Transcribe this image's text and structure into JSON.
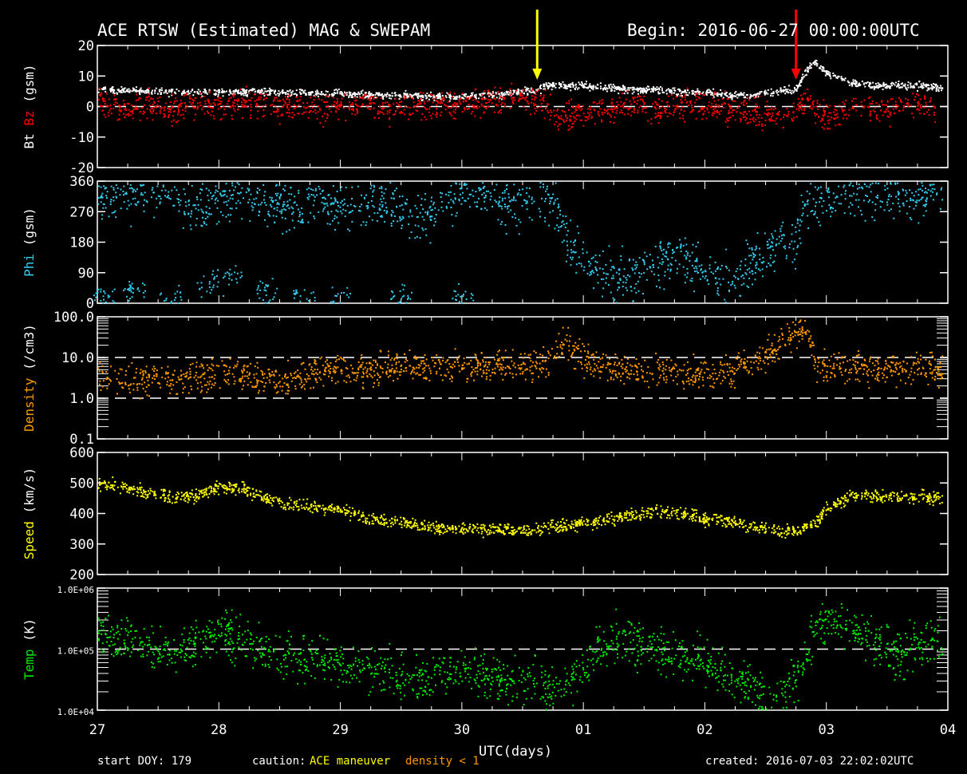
{
  "header": {
    "title": "ACE RTSW (Estimated) MAG & SWEPAM",
    "begin": "Begin: 2016-06-27 00:00:00UTC"
  },
  "footer": {
    "start_doy": "start DOY: 179",
    "caution_label": "caution:",
    "caution_maneuver": "ACE maneuver",
    "caution_density": "density < 1",
    "created": "created: 2016-07-03 22:02:02UTC"
  },
  "colors": {
    "bt": "#ffffff",
    "bz": "#ff0000",
    "phi": "#33ccee",
    "density": "#ff9900",
    "speed": "#ffff00",
    "temp": "#00ee00",
    "arrow_yellow": "#ffff00",
    "arrow_red": "#ff0000"
  },
  "chart_data": {
    "type": "scatter",
    "x_axis": {
      "ticks": [
        "27",
        "28",
        "29",
        "30",
        "01",
        "02",
        "03",
        "04"
      ],
      "label": "UTC(days)",
      "range_days": [
        0,
        7
      ]
    },
    "annotations": [
      {
        "type": "arrow",
        "color": "yellow",
        "x_day": 3.62
      },
      {
        "type": "arrow",
        "color": "red",
        "x_day": 5.75
      }
    ],
    "panels": [
      {
        "id": "mag",
        "ylabel_parts": [
          {
            "text": "Bt",
            "color": "#ffffff"
          },
          {
            "text": "Bz",
            "color": "#ff0000"
          },
          {
            "text": "(gsm)",
            "color": "#ffffff"
          }
        ],
        "ylim": [
          -20,
          20
        ],
        "ticks": [
          -20,
          -10,
          0,
          10,
          20
        ],
        "tick_labels": [
          "-20",
          "-10",
          "0",
          "10",
          "20"
        ],
        "dashed": [
          0
        ],
        "series": [
          {
            "name": "Bt",
            "color": "#ffffff",
            "x": [
              0,
              0.25,
              0.5,
              0.75,
              1.0,
              1.25,
              1.5,
              1.75,
              2.0,
              2.25,
              2.5,
              2.75,
              3.0,
              3.25,
              3.5,
              3.62,
              3.75,
              3.9,
              4.0,
              4.2,
              4.4,
              4.6,
              4.8,
              5.0,
              5.2,
              5.4,
              5.6,
              5.75,
              5.85,
              5.9,
              6.0,
              6.2,
              6.4,
              6.6,
              6.8,
              6.95
            ],
            "y": [
              6,
              5.5,
              5,
              5,
              5,
              5,
              5,
              4.5,
              4.5,
              4,
              4,
              3.5,
              3.5,
              4,
              5,
              6,
              7.5,
              7,
              7,
              6,
              6,
              5.5,
              5,
              5,
              4,
              4,
              5,
              6,
              13,
              15,
              11,
              8,
              7,
              7,
              7,
              6
            ]
          },
          {
            "name": "Bz",
            "color": "#ff0000",
            "x": [
              0,
              0.2,
              0.4,
              0.6,
              0.8,
              1.0,
              1.2,
              1.4,
              1.6,
              1.8,
              2.0,
              2.2,
              2.4,
              2.6,
              2.8,
              3.0,
              3.2,
              3.4,
              3.6,
              3.7,
              3.8,
              4.0,
              4.2,
              4.4,
              4.6,
              4.8,
              5.0,
              5.2,
              5.4,
              5.6,
              5.75,
              5.85,
              5.95,
              6.1,
              6.3,
              6.5,
              6.7,
              6.9
            ],
            "y": [
              2,
              -1,
              1,
              -1,
              1,
              0,
              2,
              -1,
              1,
              -1,
              0,
              1,
              -1,
              1,
              0,
              1,
              2,
              3,
              3,
              0,
              -4,
              -2,
              -1,
              1,
              -1,
              0,
              1,
              -1,
              -2,
              -3,
              -1,
              3,
              -3,
              -2,
              0,
              -1,
              1,
              -1
            ]
          }
        ]
      },
      {
        "id": "phi",
        "ylabel_parts": [
          {
            "text": "Phi",
            "color": "#33ccee"
          },
          {
            "text": "(gsm)",
            "color": "#ffffff"
          }
        ],
        "ylim": [
          0,
          360
        ],
        "ticks": [
          0,
          90,
          180,
          270,
          360
        ],
        "tick_labels": [
          "0",
          "90",
          "180",
          "270",
          "360"
        ],
        "dashed": [],
        "series": [
          {
            "name": "Phi",
            "color": "#33ccee",
            "x": [
              0,
              0.2,
              0.4,
              0.6,
              0.8,
              1.0,
              1.2,
              1.4,
              1.6,
              1.8,
              2.0,
              2.2,
              2.4,
              2.6,
              2.8,
              3.0,
              3.2,
              3.4,
              3.6,
              3.75,
              3.85,
              4.0,
              4.2,
              4.4,
              4.6,
              4.8,
              5.0,
              5.2,
              5.4,
              5.6,
              5.75,
              5.85,
              6.0,
              6.2,
              6.4,
              6.6,
              6.8,
              6.95
            ],
            "y": [
              330,
              300,
              340,
              320,
              280,
              310,
              330,
              300,
              290,
              320,
              270,
              290,
              300,
              250,
              280,
              350,
              320,
              280,
              340,
              300,
              200,
              120,
              90,
              60,
              120,
              150,
              100,
              60,
              130,
              180,
              200,
              300,
              310,
              330,
              320,
              300,
              340,
              310
            ]
          },
          {
            "name": "Phi-low",
            "color": "#33ccee",
            "x": [
              0.05,
              0.3,
              0.6,
              0.9,
              1.1,
              1.4,
              1.7,
              2.0,
              2.5,
              3.0
            ],
            "y": [
              20,
              40,
              10,
              60,
              80,
              30,
              20,
              10,
              15,
              20
            ]
          }
        ]
      },
      {
        "id": "density",
        "ylabel_parts": [
          {
            "text": "Density",
            "color": "#ff9900"
          },
          {
            "text": "(/cm3)",
            "color": "#ffffff"
          }
        ],
        "ylim": [
          0.1,
          100
        ],
        "log": true,
        "ticks": [
          0.1,
          1,
          10,
          100
        ],
        "tick_labels": [
          "0.1",
          "1.0",
          "10.0",
          "100.0"
        ],
        "dashed": [
          1,
          10
        ],
        "series": [
          {
            "name": "Density",
            "color": "#ff9900",
            "x": [
              0,
              0.25,
              0.5,
              0.75,
              1.0,
              1.25,
              1.5,
              1.75,
              2.0,
              2.25,
              2.5,
              2.75,
              3.0,
              3.25,
              3.5,
              3.7,
              3.85,
              4.0,
              4.2,
              4.4,
              4.6,
              4.8,
              5.0,
              5.2,
              5.4,
              5.5,
              5.6,
              5.7,
              5.8,
              5.85,
              5.9,
              6.0,
              6.2,
              6.4,
              6.6,
              6.8,
              6.95
            ],
            "y": [
              4,
              3,
              2.8,
              3.2,
              4,
              3.5,
              3,
              4,
              5,
              5,
              6,
              5.5,
              6,
              5.5,
              6,
              8,
              20,
              10,
              6,
              4,
              5,
              4,
              4,
              5,
              8,
              12,
              20,
              35,
              50,
              40,
              7,
              6,
              6,
              5,
              6,
              5,
              5
            ]
          }
        ]
      },
      {
        "id": "speed",
        "ylabel_parts": [
          {
            "text": "Speed",
            "color": "#ffff00"
          },
          {
            "text": "(km/s)",
            "color": "#ffffff"
          }
        ],
        "ylim": [
          200,
          600
        ],
        "ticks": [
          200,
          300,
          400,
          500,
          600
        ],
        "tick_labels": [
          "200",
          "300",
          "400",
          "500",
          "600"
        ],
        "dashed": [],
        "series": [
          {
            "name": "Speed",
            "color": "#ffff00",
            "x": [
              0,
              0.2,
              0.4,
              0.6,
              0.8,
              1.0,
              1.2,
              1.4,
              1.6,
              1.8,
              2.0,
              2.2,
              2.4,
              2.6,
              2.8,
              3.0,
              3.2,
              3.4,
              3.6,
              3.8,
              4.0,
              4.2,
              4.4,
              4.6,
              4.8,
              5.0,
              5.2,
              5.4,
              5.6,
              5.75,
              5.9,
              6.0,
              6.2,
              6.4,
              6.6,
              6.8,
              6.95
            ],
            "y": [
              500,
              490,
              470,
              455,
              460,
              490,
              480,
              450,
              430,
              420,
              410,
              390,
              375,
              365,
              355,
              355,
              350,
              345,
              345,
              360,
              370,
              380,
              400,
              410,
              400,
              385,
              375,
              360,
              345,
              345,
              370,
              420,
              460,
              460,
              455,
              460,
              450
            ]
          }
        ]
      },
      {
        "id": "temp",
        "ylabel_parts": [
          {
            "text": "Temp",
            "color": "#00ee00"
          },
          {
            "text": "(K)",
            "color": "#ffffff"
          }
        ],
        "ylim": [
          10000,
          1000000
        ],
        "log": true,
        "ticks": [
          10000,
          100000,
          1000000
        ],
        "tick_labels": [
          "1.0E+04",
          "1.0E+05",
          "1.0E+06"
        ],
        "dashed": [
          100000
        ],
        "series": [
          {
            "name": "Temp",
            "color": "#00ee00",
            "x": [
              0,
              0.2,
              0.4,
              0.6,
              0.8,
              1.0,
              1.2,
              1.4,
              1.6,
              1.8,
              2.0,
              2.2,
              2.4,
              2.6,
              2.8,
              3.0,
              3.2,
              3.4,
              3.6,
              3.75,
              3.85,
              4.0,
              4.1,
              4.3,
              4.5,
              4.7,
              4.9,
              5.1,
              5.3,
              5.5,
              5.6,
              5.7,
              5.8,
              5.9,
              6.0,
              6.2,
              6.4,
              6.6,
              6.8,
              6.95
            ],
            "y": [
              200000,
              150000,
              100000,
              80000,
              120000,
              180000,
              140000,
              90000,
              80000,
              70000,
              60000,
              45000,
              40000,
              35000,
              40000,
              45000,
              35000,
              30000,
              35000,
              20000,
              30000,
              40000,
              120000,
              150000,
              110000,
              90000,
              70000,
              50000,
              30000,
              14000,
              15000,
              25000,
              60000,
              200000,
              300000,
              200000,
              120000,
              100000,
              130000,
              150000
            ]
          }
        ]
      }
    ]
  }
}
